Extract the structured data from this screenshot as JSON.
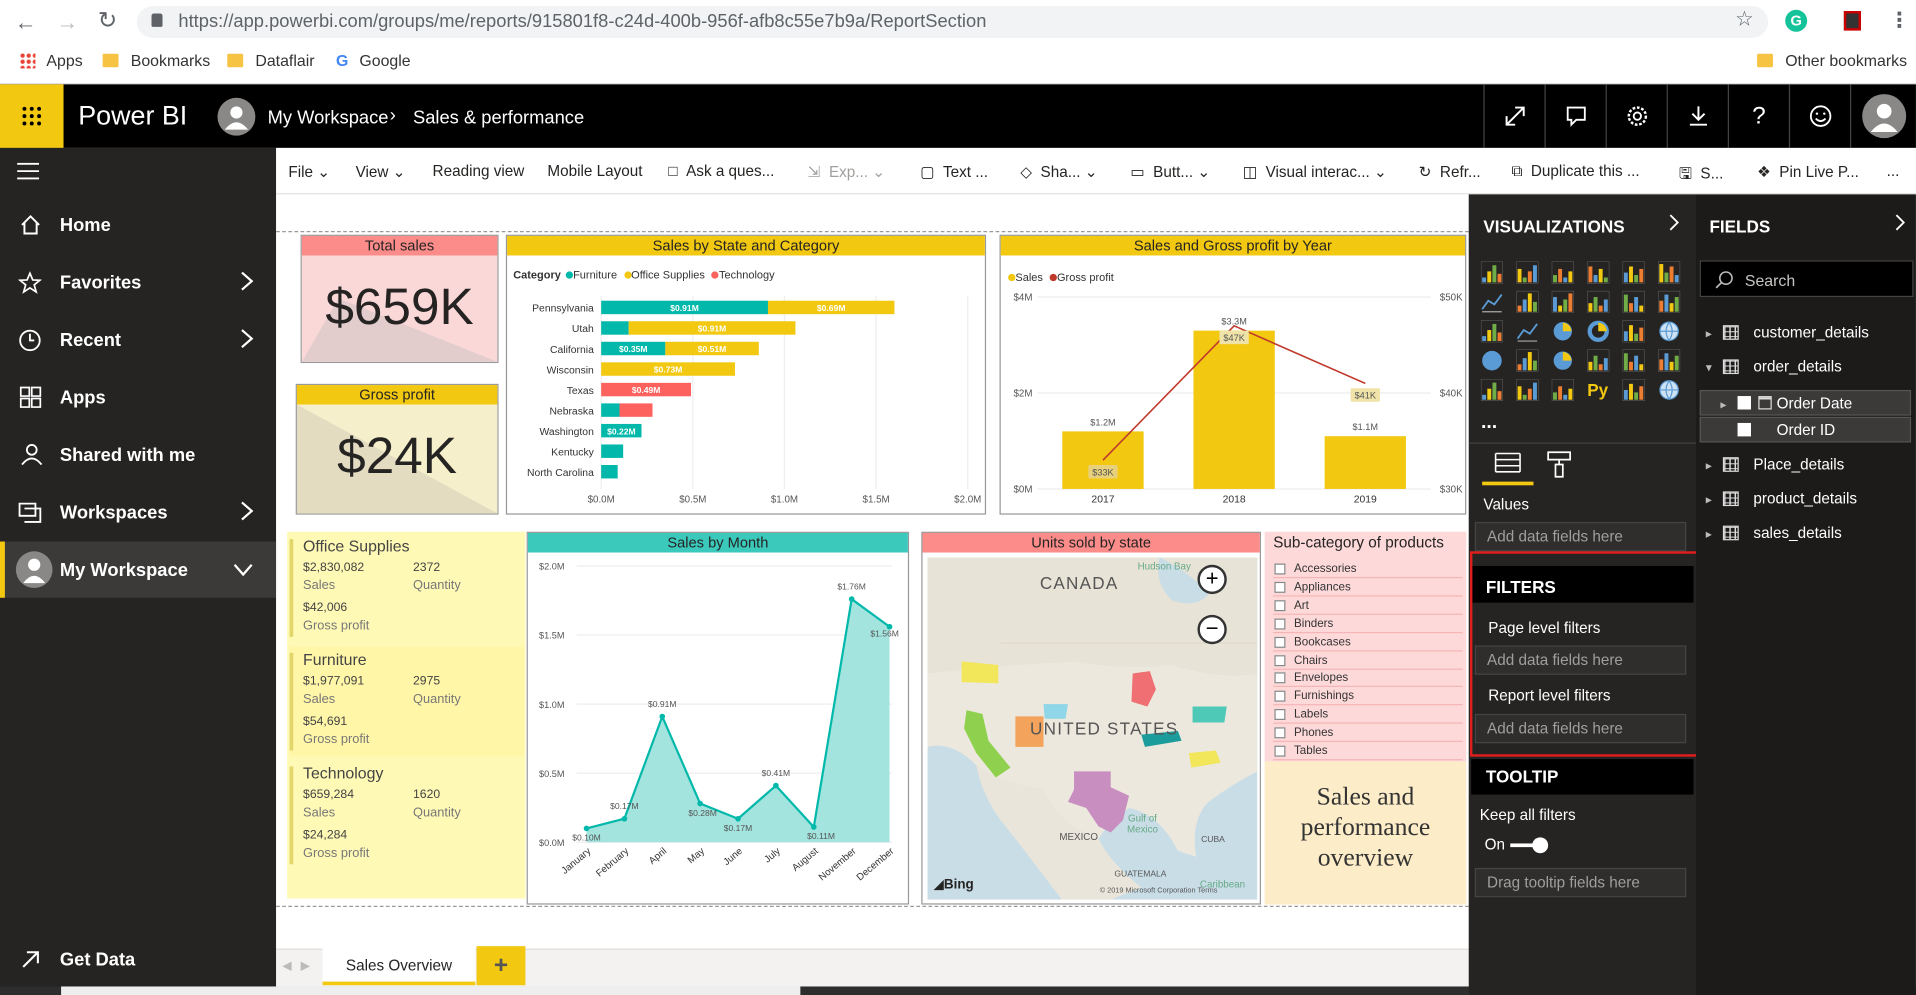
{
  "browser": {
    "url": "https://app.powerbi.com/groups/me/reports/915801f8-c24d-400b-956f-afb8c55e7b9a/ReportSection",
    "bookmarks": [
      "Apps",
      "Bookmarks",
      "Dataflair",
      "Google"
    ],
    "other_bookmarks": "Other bookmarks"
  },
  "app": {
    "name": "Power BI",
    "breadcrumb_workspace": "My Workspace",
    "breadcrumb_report": "Sales & performance"
  },
  "nav": {
    "items": [
      "Home",
      "Favorites",
      "Recent",
      "Apps",
      "Shared with me",
      "Workspaces",
      "My Workspace"
    ],
    "get_data": "Get Data"
  },
  "toolbar": {
    "items": [
      "File",
      "View",
      "Reading view",
      "Mobile Layout",
      "Ask a ques...",
      "Exp...",
      "Text ...",
      "Sha...",
      "Butt...",
      "Visual interac...",
      "Refr...",
      "Duplicate this ...",
      "S...",
      "Pin Live P...",
      "..."
    ]
  },
  "kpis": {
    "total_sales_title": "Total sales",
    "total_sales_value": "$659K",
    "gross_profit_title": "Gross profit",
    "gross_profit_value": "$24K"
  },
  "category_cards": [
    {
      "name": "Office Supplies",
      "sales": "$2,830,082",
      "sales_label": "Sales",
      "qty": "2372",
      "qty_label": "Quantity",
      "profit": "$42,006",
      "profit_label": "Gross profit"
    },
    {
      "name": "Furniture",
      "sales": "$1,977,091",
      "sales_label": "Sales",
      "qty": "2975",
      "qty_label": "Quantity",
      "profit": "$54,691",
      "profit_label": "Gross profit"
    },
    {
      "name": "Technology",
      "sales": "$659,284",
      "sales_label": "Sales",
      "qty": "1620",
      "qty_label": "Quantity",
      "profit": "$24,284",
      "profit_label": "Gross profit"
    }
  ],
  "map": {
    "title": "Units sold by state",
    "labels": [
      "CANADA",
      "UNITED STATES",
      "Hudson Bay",
      "Gulf of Mexico",
      "MEXICO",
      "CUBA",
      "GUATEMALA",
      "Caribbean"
    ],
    "credit": "© 2019 Microsoft Corporation Terms",
    "bing": "Bing"
  },
  "slicer": {
    "title": "Sub-category of products",
    "items": [
      "Accessories",
      "Appliances",
      "Art",
      "Binders",
      "Bookcases",
      "Chairs",
      "Envelopes",
      "Furnishings",
      "Labels",
      "Phones",
      "Tables"
    ]
  },
  "overview_text": [
    "Sales and",
    "performance",
    "overview"
  ],
  "visualizations": {
    "header": "VISUALIZATIONS",
    "values_label": "Values",
    "values_well": "Add data fields here",
    "filters_header": "FILTERS",
    "page_filters": "Page level filters",
    "page_well": "Add data fields here",
    "report_filters": "Report level filters",
    "report_well": "Add data fields here",
    "tooltip_header": "TOOLTIP",
    "keep_filters": "Keep all filters",
    "toggle_state": "On",
    "tooltip_well": "Drag tooltip fields here",
    "more": "..."
  },
  "fields": {
    "header": "FIELDS",
    "search_placeholder": "Search",
    "tables": [
      "customer_details",
      "order_details",
      "Place_details",
      "product_details",
      "sales_details"
    ],
    "order_details_children": [
      "Order Date",
      "Order ID"
    ]
  },
  "footer": {
    "tab": "Sales Overview",
    "add": "+"
  },
  "colors": {
    "yellow": "#f2c811",
    "teal": "#01b8aa",
    "salmon": "#fd625e",
    "dark_red": "#c0392b",
    "header_bg": "#000000",
    "nav_bg": "#252423"
  },
  "chart_data": [
    {
      "type": "bar",
      "title": "Sales by State and Category",
      "legend_title": "Category",
      "categories": [
        "Pennsylvania",
        "Utah",
        "California",
        "Wisconsin",
        "Texas",
        "Nebraska",
        "Washington",
        "Kentucky",
        "North Carolina"
      ],
      "series": [
        {
          "name": "Furniture",
          "values": [
            0.91,
            0.15,
            0.35,
            0,
            0,
            0.1,
            0.22,
            0.12,
            0.09
          ],
          "labels": [
            "$0.91M",
            "",
            "$0.35M",
            "",
            "",
            "",
            "$0.22M",
            "",
            ""
          ]
        },
        {
          "name": "Office Supplies",
          "values": [
            0.69,
            0.91,
            0.51,
            0.73,
            0,
            0,
            0,
            0,
            0
          ],
          "labels": [
            "$0.69M",
            "$0.91M",
            "$0.51M",
            "$0.73M",
            "",
            "",
            "",
            "",
            ""
          ]
        },
        {
          "name": "Technology",
          "values": [
            0,
            0,
            0,
            0,
            0.49,
            0.18,
            0,
            0,
            0
          ],
          "labels": [
            "",
            "",
            "",
            "",
            "$0.49M",
            "",
            "",
            "",
            ""
          ]
        }
      ],
      "xticks": [
        "$0.0M",
        "$0.5M",
        "$1.0M",
        "$1.5M",
        "$2.0M"
      ],
      "xlim": [
        0,
        2.0
      ]
    },
    {
      "type": "bar",
      "title": "Sales and Gross profit by Year",
      "categories": [
        "2017",
        "2018",
        "2019"
      ],
      "series": [
        {
          "name": "Sales",
          "values": [
            1.2,
            3.3,
            1.1
          ],
          "labels": [
            "$1.2M",
            "$3.3M",
            "$1.1M"
          ]
        },
        {
          "name": "Gross profit",
          "values": [
            33,
            47,
            41
          ],
          "labels": [
            "$33K",
            "$47K",
            "$41K"
          ]
        }
      ],
      "yticks_left": [
        "$0M",
        "$2M",
        "$4M"
      ],
      "ylim_left": [
        0,
        4
      ],
      "yticks_right": [
        "$30K",
        "$40K",
        "$50K"
      ],
      "ylim_right": [
        30,
        50
      ]
    },
    {
      "type": "area",
      "title": "Sales by Month",
      "categories": [
        "January",
        "February",
        "April",
        "May",
        "June",
        "July",
        "August",
        "November",
        "December"
      ],
      "values": [
        0.1,
        0.17,
        0.91,
        0.28,
        0.17,
        0.41,
        0.11,
        1.76,
        1.56
      ],
      "labels": [
        "$0.10M",
        "$0.17M",
        "$0.91M",
        "$0.28M",
        "$0.17M",
        "$0.41M",
        "$0.11M",
        "$1.76M",
        "$1.56M"
      ],
      "yticks": [
        "$0.0M",
        "$0.5M",
        "$1.0M",
        "$1.5M",
        "$2.0M"
      ],
      "ylim": [
        0,
        2.0
      ]
    }
  ]
}
